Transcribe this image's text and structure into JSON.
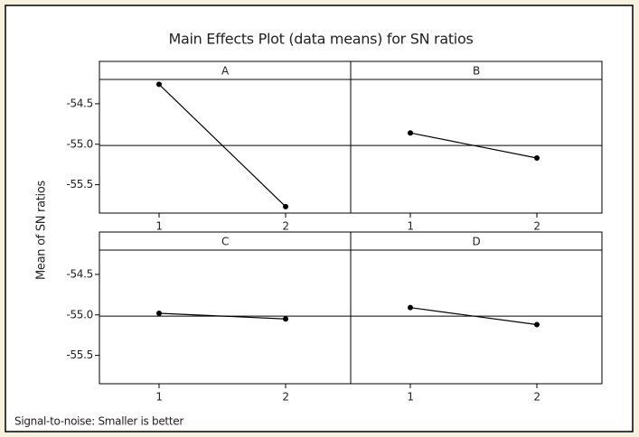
{
  "title": "Main Effects Plot (data means) for SN ratios",
  "ylabel": "Mean of SN ratios",
  "footnote": "Signal-to-noise: Smaller is better",
  "chart_data": [
    {
      "type": "line",
      "title": "A",
      "categories": [
        "1",
        "2"
      ],
      "values": [
        -54.26,
        -55.77
      ],
      "color": "#000000",
      "ylim": [
        -55.85,
        -54.2
      ],
      "yticks": [
        -54.5,
        {
          "value": -55,
          "label": "-55.0"
        },
        -55.5
      ],
      "reference_line": -55.015
    },
    {
      "type": "line",
      "title": "B",
      "categories": [
        "1",
        "2"
      ],
      "values": [
        -54.86,
        -55.17
      ],
      "color": "#000000",
      "ylim": [
        -55.85,
        -54.2
      ],
      "reference_line": -55.015
    },
    {
      "type": "line",
      "title": "C",
      "categories": [
        "1",
        "2"
      ],
      "values": [
        -54.98,
        -55.05
      ],
      "color": "#000000",
      "ylim": [
        -55.85,
        -54.2
      ],
      "yticks": [
        -54.5,
        {
          "value": -55,
          "label": "-55.0"
        },
        -55.5
      ],
      "reference_line": -55.015
    },
    {
      "type": "line",
      "title": "D",
      "categories": [
        "1",
        "2"
      ],
      "values": [
        -54.91,
        -55.12
      ],
      "color": "#000000",
      "ylim": [
        -55.85,
        -54.2
      ],
      "reference_line": -55.015
    }
  ]
}
